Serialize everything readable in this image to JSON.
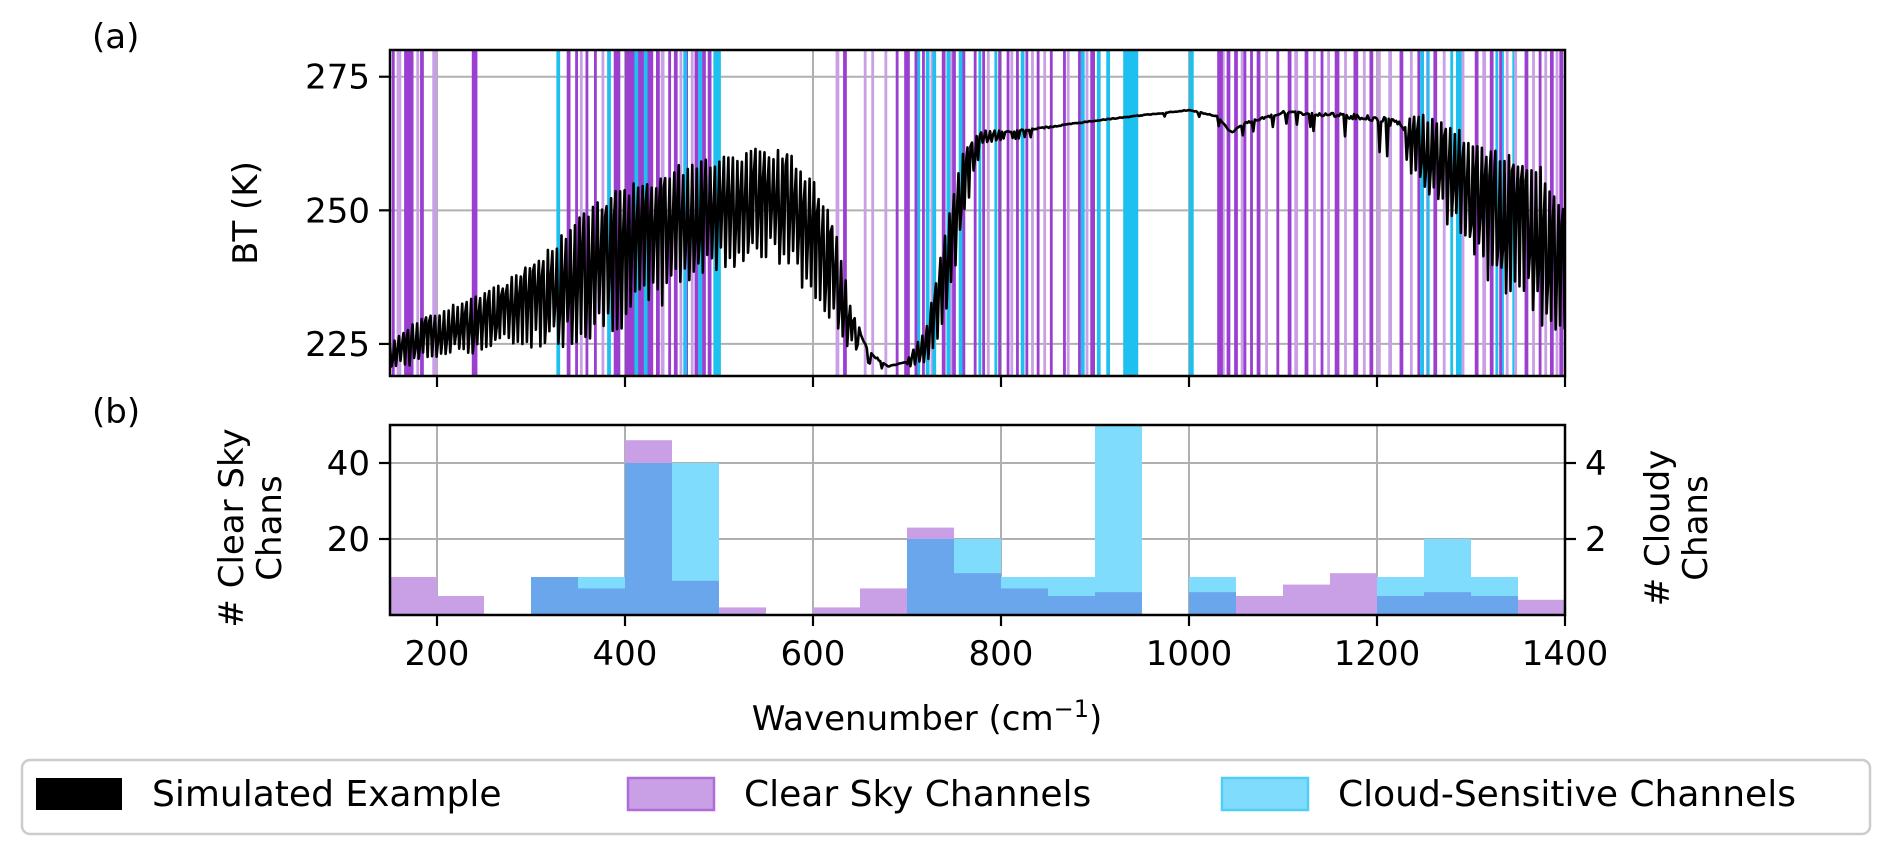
{
  "colors": {
    "clear_sky": "#9b3fd0",
    "clear_sky_light": "#c9a0e6",
    "cloud": "#1ec0f0",
    "cloud_light": "#80dcfc",
    "overlap": "#6aa6ec",
    "line": "#000000",
    "grid": "#b0b0b0"
  },
  "chart_data": [
    {
      "panel_label": "(a)",
      "type": "line",
      "ylabel": "BT (K)",
      "xlim": [
        150,
        1400
      ],
      "ylim": [
        219,
        280
      ],
      "xticks": [
        200,
        400,
        600,
        800,
        1000,
        1200,
        1400
      ],
      "yticks": [
        225,
        250,
        275
      ],
      "grid": true,
      "series": [
        {
          "name": "Simulated Example",
          "envelope": {
            "x": [
              150,
              175,
              200,
              225,
              250,
              275,
              300,
              325,
              350,
              375,
              400,
              425,
              450,
              475,
              500,
              525,
              550,
              575,
              600,
              625,
              640,
              660,
              680,
              700,
              720,
              740,
              760,
              780,
              800,
              850,
              900,
              950,
              1000,
              1030,
              1045,
              1060,
              1100,
              1150,
              1200,
              1250,
              1280,
              1300,
              1320,
              1350,
              1375,
              1400
            ],
            "upper": [
              225,
              229,
              231,
              233,
              235,
              237,
              240,
              244,
              249,
              252,
              255,
              256,
              258,
              260,
              260,
              261,
              262,
              261,
              256,
              247,
              232,
              224,
              221,
              222,
              228,
              245,
              262,
              265,
              265,
              266,
              267,
              268,
              269,
              268,
              265,
              267,
              269,
              269,
              269,
              268,
              266,
              264,
              262,
              260,
              259,
              250
            ],
            "lower": [
              220,
              221,
              222,
              223,
              223,
              224,
              224,
              224,
              225,
              226,
              228,
              230,
              233,
              237,
              238,
              240,
              240,
              238,
              232,
              226,
              224,
              221,
              220,
              220,
              221,
              228,
              248,
              262,
              263,
              264,
              266,
              267,
              268,
              266,
              263,
              264,
              266,
              264,
              261,
              254,
              246,
              240,
              236,
              232,
              228,
              226
            ]
          }
        }
      ],
      "clear_sky_bands": [
        [
          152,
          155
        ],
        [
          165,
          175
        ],
        [
          182,
          186
        ],
        [
          237,
          243
        ],
        [
          338,
          342
        ],
        [
          347,
          350
        ],
        [
          358,
          361
        ],
        [
          367,
          370
        ],
        [
          388,
          395
        ],
        [
          400,
          430
        ],
        [
          433,
          437
        ],
        [
          446,
          449
        ],
        [
          452,
          456
        ],
        [
          464,
          467
        ],
        [
          474,
          478
        ],
        [
          482,
          486
        ],
        [
          488,
          492
        ],
        [
          632,
          636
        ],
        [
          688,
          691
        ],
        [
          697,
          703
        ],
        [
          708,
          712
        ],
        [
          716,
          719
        ],
        [
          737,
          741
        ],
        [
          748,
          752
        ],
        [
          758,
          762
        ],
        [
          771,
          774
        ],
        [
          780,
          783
        ],
        [
          797,
          800
        ],
        [
          806,
          809
        ],
        [
          816,
          819
        ],
        [
          826,
          829
        ],
        [
          838,
          841
        ],
        [
          852,
          855
        ],
        [
          866,
          869
        ],
        [
          882,
          885
        ],
        [
          895,
          900
        ],
        [
          1030,
          1036
        ],
        [
          1040,
          1044
        ],
        [
          1048,
          1052
        ],
        [
          1058,
          1061
        ],
        [
          1065,
          1068
        ],
        [
          1072,
          1076
        ],
        [
          1093,
          1096
        ],
        [
          1105,
          1109
        ],
        [
          1123,
          1127
        ],
        [
          1140,
          1143
        ],
        [
          1155,
          1160
        ],
        [
          1175,
          1180
        ],
        [
          1192,
          1196
        ],
        [
          1224,
          1228
        ],
        [
          1243,
          1246
        ],
        [
          1260,
          1264
        ],
        [
          1304,
          1308
        ],
        [
          1320,
          1324
        ],
        [
          1330,
          1333
        ],
        [
          1357,
          1361
        ],
        [
          1372,
          1375
        ],
        [
          1384,
          1388
        ],
        [
          1394,
          1398
        ]
      ],
      "clear_sky_light_bands": [
        [
          157,
          162
        ],
        [
          178,
          181
        ],
        [
          195,
          200
        ],
        [
          352,
          355
        ],
        [
          375,
          378
        ],
        [
          438,
          442
        ],
        [
          458,
          461
        ],
        [
          470,
          473
        ],
        [
          624,
          628
        ],
        [
          654,
          657
        ],
        [
          662,
          665
        ],
        [
          676,
          679
        ],
        [
          725,
          728
        ],
        [
          745,
          748
        ],
        [
          785,
          788
        ],
        [
          810,
          813
        ],
        [
          832,
          835
        ],
        [
          845,
          848
        ],
        [
          870,
          873
        ],
        [
          890,
          893
        ],
        [
          1035,
          1038
        ],
        [
          1055,
          1058
        ],
        [
          1081,
          1084
        ],
        [
          1112,
          1116
        ],
        [
          1132,
          1135
        ],
        [
          1147,
          1150
        ],
        [
          1165,
          1168
        ],
        [
          1185,
          1188
        ],
        [
          1200,
          1204
        ],
        [
          1212,
          1216
        ],
        [
          1235,
          1238
        ],
        [
          1252,
          1255
        ],
        [
          1270,
          1273
        ],
        [
          1290,
          1293
        ],
        [
          1312,
          1316
        ],
        [
          1337,
          1340
        ],
        [
          1346,
          1349
        ],
        [
          1365,
          1368
        ],
        [
          1378,
          1381
        ],
        [
          1390,
          1393
        ]
      ],
      "cloud_bands": [
        [
          327,
          331
        ],
        [
          381,
          385
        ],
        [
          410,
          414
        ],
        [
          420,
          424
        ],
        [
          462,
          466
        ],
        [
          478,
          482
        ],
        [
          494,
          502
        ],
        [
          711,
          714
        ],
        [
          720,
          724
        ],
        [
          727,
          731
        ],
        [
          742,
          746
        ],
        [
          755,
          759
        ],
        [
          776,
          779
        ],
        [
          793,
          796
        ],
        [
          821,
          825
        ],
        [
          885,
          889
        ],
        [
          902,
          906
        ],
        [
          912,
          916
        ],
        [
          930,
          946
        ],
        [
          1000,
          1005
        ],
        [
          1246,
          1250
        ],
        [
          1253,
          1256
        ],
        [
          1278,
          1281
        ],
        [
          1284,
          1290
        ],
        [
          1326,
          1329
        ],
        [
          1333,
          1335
        ],
        [
          1344,
          1346
        ]
      ]
    },
    {
      "panel_label": "(b)",
      "type": "bar",
      "xlabel": "Wavenumber (cm−1)",
      "ylabel_left": "# Clear Sky Chans",
      "ylabel_right": "# Cloudy Chans",
      "xlim": [
        150,
        1400
      ],
      "ylim_left": [
        0,
        50
      ],
      "ylim_right": [
        0,
        5
      ],
      "yticks_left": [
        20,
        40
      ],
      "yticks_right": [
        2,
        4
      ],
      "grid": true,
      "bin_edges": [
        150,
        200,
        250,
        300,
        350,
        400,
        450,
        500,
        550,
        600,
        650,
        700,
        750,
        800,
        850,
        900,
        950,
        1000,
        1050,
        1100,
        1150,
        1200,
        1250,
        1300,
        1350,
        1400
      ],
      "series": [
        {
          "name": "Clear Sky Channels",
          "axis": "left",
          "values": [
            10,
            5,
            0,
            10,
            7,
            46,
            9,
            2,
            0,
            2,
            7,
            23,
            11,
            7,
            5,
            6,
            0,
            6,
            5,
            8,
            11,
            5,
            6,
            5,
            4
          ]
        },
        {
          "name": "Cloud-Sensitive Channels",
          "axis": "right",
          "values": [
            0,
            0,
            0,
            1,
            1,
            4,
            4,
            0,
            0,
            0,
            0,
            2,
            2,
            1,
            1,
            5,
            0,
            1,
            0,
            0,
            0,
            1,
            2,
            1,
            0
          ]
        }
      ]
    }
  ],
  "legend": {
    "items": [
      {
        "label": "Simulated Example",
        "color": "#000000"
      },
      {
        "label": "Clear Sky Channels",
        "color": "#c9a0e6"
      },
      {
        "label": "Cloud-Sensitive Channels",
        "color": "#80dcfc"
      }
    ]
  }
}
